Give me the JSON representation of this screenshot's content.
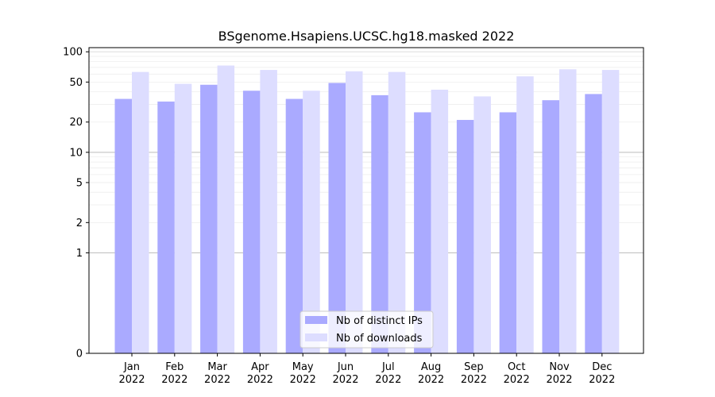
{
  "chart_data": {
    "type": "bar",
    "title": "BSgenome.Hsapiens.UCSC.hg18.masked 2022",
    "xlabel": "",
    "ylabel": "",
    "y_scale": "symlog",
    "ylim": [
      0,
      110
    ],
    "y_ticks": [
      {
        "value": 0,
        "label": "0"
      },
      {
        "value": 1,
        "label": "1"
      },
      {
        "value": 2,
        "label": "2"
      },
      {
        "value": 5,
        "label": "5"
      },
      {
        "value": 10,
        "label": "10"
      },
      {
        "value": 20,
        "label": "20"
      },
      {
        "value": 50,
        "label": "50"
      },
      {
        "value": 100,
        "label": "100"
      }
    ],
    "grid": true,
    "legend_position": "bottom-center",
    "categories": [
      {
        "month": "Jan",
        "year": "2022"
      },
      {
        "month": "Feb",
        "year": "2022"
      },
      {
        "month": "Mar",
        "year": "2022"
      },
      {
        "month": "Apr",
        "year": "2022"
      },
      {
        "month": "May",
        "year": "2022"
      },
      {
        "month": "Jun",
        "year": "2022"
      },
      {
        "month": "Jul",
        "year": "2022"
      },
      {
        "month": "Aug",
        "year": "2022"
      },
      {
        "month": "Sep",
        "year": "2022"
      },
      {
        "month": "Oct",
        "year": "2022"
      },
      {
        "month": "Nov",
        "year": "2022"
      },
      {
        "month": "Dec",
        "year": "2022"
      }
    ],
    "series": [
      {
        "name": "Nb of distinct IPs",
        "color": "#aaaaff",
        "values": [
          34,
          32,
          47,
          41,
          34,
          49,
          37,
          25,
          21,
          25,
          33,
          38
        ]
      },
      {
        "name": "Nb of downloads",
        "color": "#ddddff",
        "values": [
          63,
          48,
          73,
          66,
          41,
          64,
          63,
          42,
          36,
          57,
          67,
          66
        ]
      }
    ]
  }
}
